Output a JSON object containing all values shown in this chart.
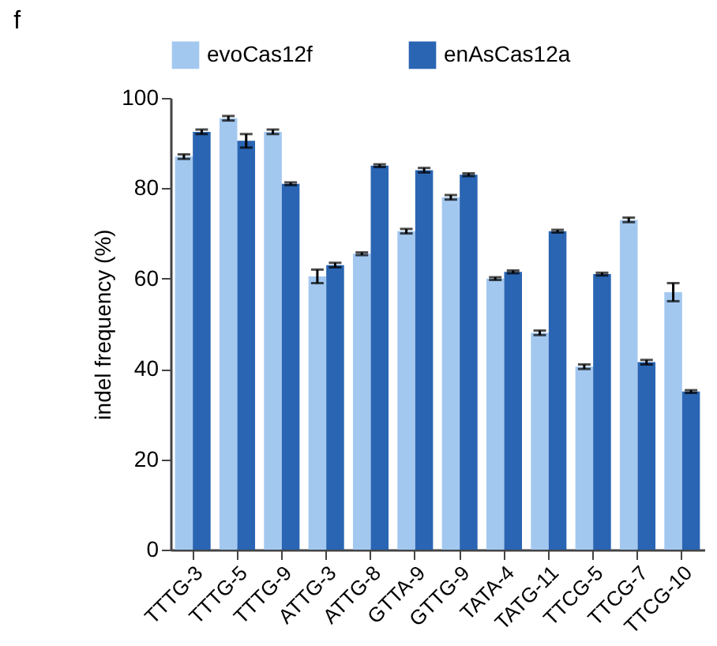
{
  "chart_data": {
    "type": "bar",
    "annotations": [
      "f"
    ],
    "ylabel": "indel frequency (%)",
    "categories": [
      "TTTG-3",
      "TTTG-5",
      "TTTG-9",
      "ATTG-3",
      "ATTG-8",
      "GTTA-9",
      "GTTG-9",
      "TATA-4",
      "TATG-11",
      "TTCG-5",
      "TTCG-7",
      "TTCG-10"
    ],
    "series": [
      {
        "name": "evoCas12f",
        "color": "#a3c8f0",
        "values": [
          87,
          95.5,
          92.5,
          60.5,
          65.5,
          70.5,
          78,
          60,
          48,
          40.5,
          73,
          57
        ],
        "errors": [
          0.5,
          0.5,
          0.5,
          1.5,
          0.3,
          0.5,
          0.5,
          0.3,
          0.5,
          0.5,
          0.5,
          2
        ]
      },
      {
        "name": "enAsCas12a",
        "color": "#2a65b3",
        "values": [
          92.5,
          90.5,
          81,
          63,
          85,
          84,
          83,
          61.5,
          70.5,
          61,
          41.5,
          35
        ],
        "errors": [
          0.5,
          1.5,
          0.3,
          0.5,
          0.3,
          0.5,
          0.3,
          0.3,
          0.3,
          0.3,
          0.5,
          0.3
        ]
      }
    ],
    "ylim": [
      0,
      100
    ],
    "yticks": [
      0,
      20,
      40,
      60,
      80,
      100
    ],
    "grid": false,
    "legend": "top"
  }
}
